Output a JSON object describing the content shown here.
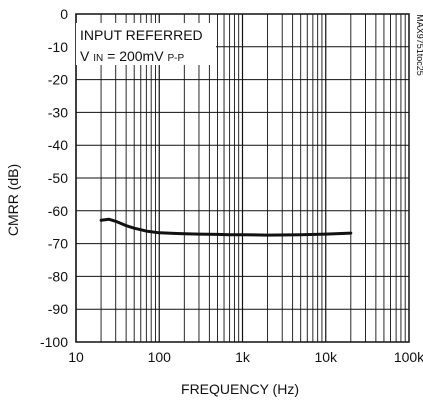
{
  "chart_data": {
    "type": "line",
    "xlabel": "FREQUENCY (Hz)",
    "ylabel": "CMRR (dB)",
    "x_scale": "log",
    "xlim": [
      10,
      100000
    ],
    "ylim": [
      -100,
      0
    ],
    "grid": true,
    "x_ticks": [
      {
        "value": 10,
        "label": "10"
      },
      {
        "value": 100,
        "label": "100"
      },
      {
        "value": 1000,
        "label": "1k"
      },
      {
        "value": 10000,
        "label": "10k"
      },
      {
        "value": 100000,
        "label": "100k"
      }
    ],
    "y_ticks": [
      0,
      -10,
      -20,
      -30,
      -40,
      -50,
      -60,
      -70,
      -80,
      -90,
      -100
    ],
    "annotation": {
      "line1": "INPUT REFERRED",
      "line2_main": "V",
      "line2_sub1": "IN",
      "line2_mid": " = 200mV",
      "line2_sub2": "P-P"
    },
    "side_label": "MAX9751toc25",
    "series": [
      {
        "x": [
          20,
          25,
          30,
          40,
          50,
          70,
          100,
          150,
          200,
          300,
          500,
          700,
          1000,
          2000,
          5000,
          10000,
          20000
        ],
        "y": [
          -62.9,
          -62.6,
          -63.2,
          -64.5,
          -65.3,
          -66.2,
          -66.7,
          -66.9,
          -67.0,
          -67.1,
          -67.2,
          -67.3,
          -67.3,
          -67.4,
          -67.3,
          -67.1,
          -66.8
        ]
      }
    ]
  }
}
